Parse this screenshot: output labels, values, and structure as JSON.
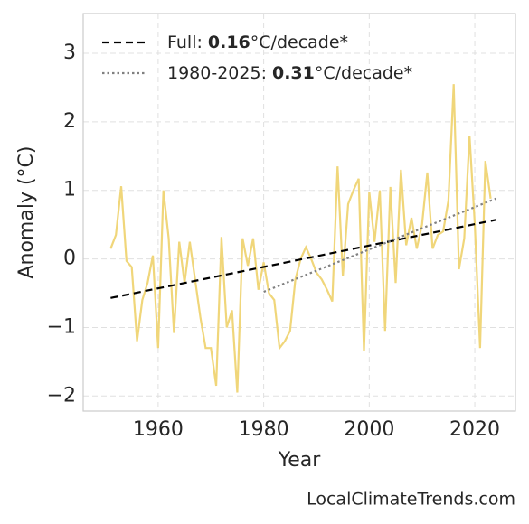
{
  "chart_data": {
    "type": "line",
    "x_label": "Year",
    "y_label": "Anomaly (°C)",
    "source": "LocalClimateTrends.com",
    "xlim": [
      1945.8,
      2027.7
    ],
    "xticks": [
      1960,
      1980,
      2000,
      2020
    ],
    "ylim": [
      -2.22,
      3.58
    ],
    "yticks": [
      {
        "value": -2,
        "label": "−2"
      },
      {
        "value": -1,
        "label": "−1"
      },
      0,
      1,
      2,
      3
    ],
    "grid": true,
    "legend": "upper left",
    "series": [
      {
        "color": "#f0d67a",
        "x": [
          1951,
          1952,
          1953,
          1954,
          1955,
          1956,
          1957,
          1958,
          1959,
          1960,
          1961,
          1962,
          1963,
          1964,
          1965,
          1966,
          1967,
          1968,
          1969,
          1970,
          1971,
          1972,
          1973,
          1974,
          1975,
          1976,
          1977,
          1978,
          1979,
          1980,
          1981,
          1982,
          1983,
          1984,
          1985,
          1986,
          1987,
          1988,
          1989,
          1990,
          1991,
          1992,
          1993,
          1994,
          1995,
          1996,
          1997,
          1998,
          1999,
          2000,
          2001,
          2002,
          2003,
          2004,
          2005,
          2006,
          2007,
          2008,
          2009,
          2010,
          2011,
          2012,
          2013,
          2014,
          2015,
          2016,
          2017,
          2018,
          2019,
          2020,
          2021,
          2022,
          2023
        ],
        "values": [
          0.15,
          0.35,
          1.06,
          -0.03,
          -0.12,
          -1.2,
          -0.6,
          -0.35,
          0.05,
          -1.3,
          1.0,
          0.3,
          -1.08,
          0.25,
          -0.35,
          0.25,
          -0.3,
          -0.85,
          -1.3,
          -1.3,
          -1.85,
          0.32,
          -1.0,
          -0.75,
          -1.95,
          0.3,
          -0.1,
          0.3,
          -0.45,
          -0.05,
          -0.5,
          -0.6,
          -1.3,
          -1.2,
          -1.05,
          -0.3,
          0.0,
          0.17,
          0.0,
          -0.2,
          -0.3,
          -0.45,
          -0.62,
          1.35,
          -0.25,
          0.8,
          1.0,
          1.17,
          -1.35,
          0.98,
          0.25,
          1.0,
          -1.05,
          1.05,
          -0.35,
          1.3,
          0.2,
          0.6,
          0.15,
          0.5,
          1.26,
          0.15,
          0.35,
          0.4,
          0.85,
          2.55,
          -0.15,
          0.3,
          1.8,
          0.5,
          -1.3,
          1.43,
          0.88
        ]
      },
      {
        "name": "Full:",
        "slope": 0.16,
        "unit": "°C/decade*",
        "color": "#000000",
        "dash": "dashed",
        "x": [
          1951,
          2024
        ],
        "values": [
          -0.57,
          0.57
        ]
      },
      {
        "name": "1980-2025:",
        "slope": 0.31,
        "unit": "°C/decade*",
        "color": "#808080",
        "dash": "dotted",
        "x": [
          1980,
          2024
        ],
        "values": [
          -0.48,
          0.88
        ]
      }
    ]
  }
}
